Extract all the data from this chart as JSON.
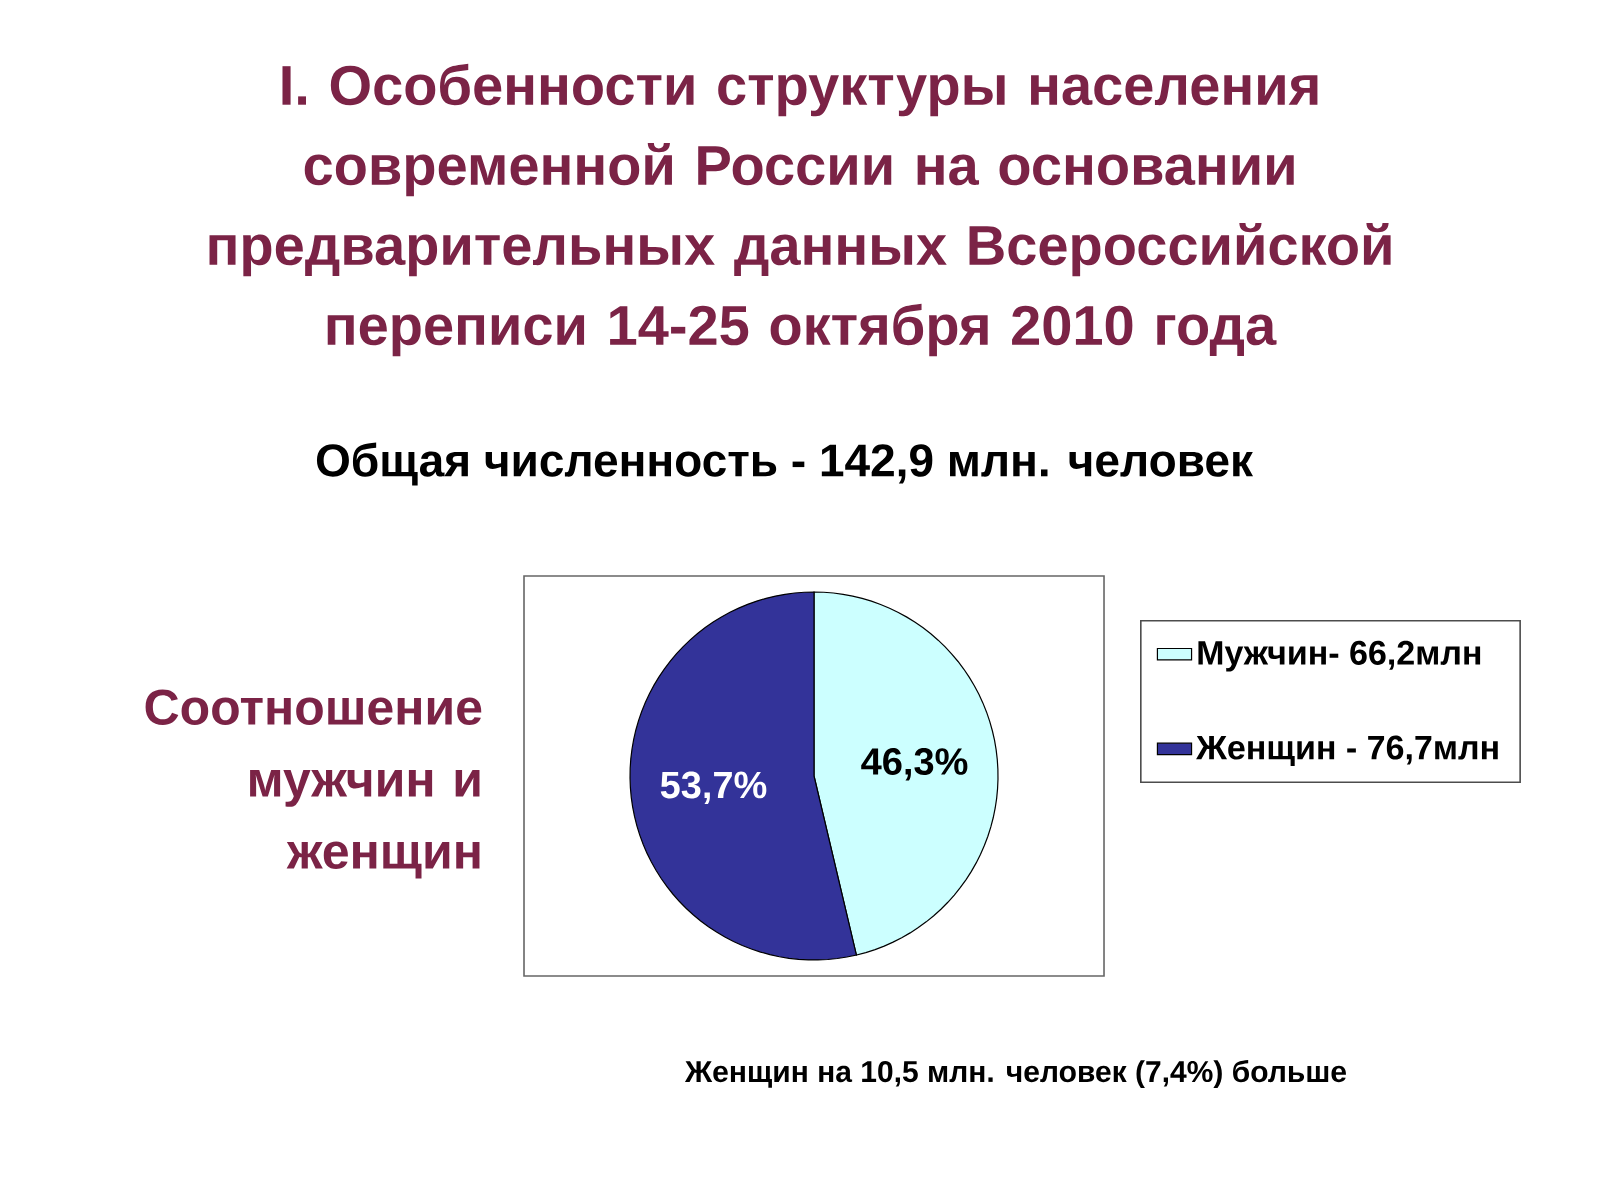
{
  "chart_data": {
    "type": "pie",
    "title": "I. Особенности структуры населения современной России на основании предварительных данных Всероссийской переписи 14-25 октября 2010 года",
    "subtitle": "Общая численность - 142,9 млн. человек",
    "categories": [
      "Мужчин- 66,2млн",
      "Женщин - 76,7млн"
    ],
    "values": [
      46.3,
      53.7
    ],
    "value_labels": [
      "46,3%",
      "53,7%"
    ],
    "colors": [
      "#ccffff",
      "#333399"
    ],
    "legend": "right",
    "annotations": [
      "Соотношение мужчин и женщин",
      "Женщин на 10,5 млн. человек (7,4%) больше"
    ]
  }
}
